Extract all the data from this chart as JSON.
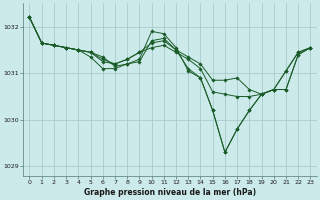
{
  "title": "Graphe pression niveau de la mer (hPa)",
  "bg_color": "#cceaea",
  "grid_color": "#aacccc",
  "line_color": "#1a5c28",
  "xlim": [
    -0.5,
    23.5
  ],
  "ylim": [
    1028.8,
    1032.5
  ],
  "yticks": [
    1029,
    1030,
    1031,
    1032
  ],
  "xticks": [
    0,
    1,
    2,
    3,
    4,
    5,
    6,
    7,
    8,
    9,
    10,
    11,
    12,
    13,
    14,
    15,
    16,
    17,
    18,
    19,
    20,
    21,
    22,
    23
  ],
  "series": [
    [
      1032.2,
      1031.65,
      1031.6,
      1031.55,
      1031.5,
      1031.45,
      1031.35,
      1031.15,
      1031.2,
      1031.3,
      1031.9,
      1031.85,
      1031.55,
      1031.05,
      1030.9,
      1030.2,
      1029.3,
      1029.8,
      1030.2,
      1030.55,
      1030.65,
      1031.05,
      1031.45,
      1031.55
    ],
    [
      1032.2,
      1031.65,
      1031.6,
      1031.55,
      1031.5,
      1031.45,
      1031.3,
      1031.2,
      1031.3,
      1031.45,
      1031.65,
      1031.7,
      1031.5,
      1031.35,
      1031.2,
      1030.85,
      1030.85,
      1030.9,
      1030.65,
      1030.55,
      1030.65,
      1030.65,
      1031.4,
      1031.55
    ],
    [
      1032.2,
      1031.65,
      1031.6,
      1031.55,
      1031.5,
      1031.45,
      1031.25,
      1031.2,
      1031.3,
      1031.45,
      1031.55,
      1031.6,
      1031.45,
      1031.3,
      1031.1,
      1030.6,
      1030.55,
      1030.5,
      1030.5,
      1030.55,
      1030.65,
      1030.65,
      1031.4,
      1031.55
    ],
    [
      1032.2,
      1031.65,
      1031.6,
      1031.55,
      1031.5,
      1031.35,
      1031.1,
      1031.1,
      1031.2,
      1031.25,
      1031.7,
      1031.75,
      1031.5,
      1031.1,
      1030.9,
      1030.2,
      1029.3,
      1029.8,
      1030.2,
      1030.55,
      1030.65,
      1031.05,
      1031.45,
      1031.55
    ]
  ]
}
